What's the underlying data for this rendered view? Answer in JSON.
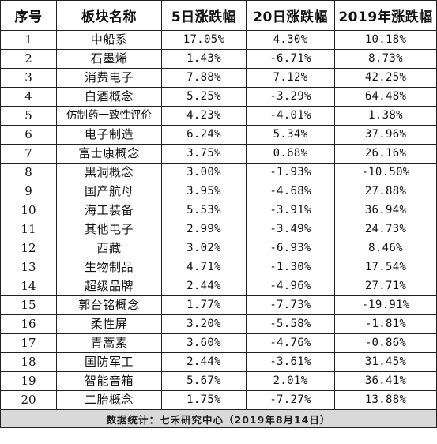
{
  "table": {
    "headers": {
      "index": "序号",
      "sector": "板块名称",
      "change_5d": "5日涨跌幅",
      "change_20d": "20日涨跌幅",
      "change_2019": "2019年涨跌幅"
    },
    "rows": [
      {
        "index": "1",
        "sector": "中船系",
        "change_5d": "17.05%",
        "change_20d": "4.30%",
        "change_2019": "10.18%"
      },
      {
        "index": "2",
        "sector": "石墨烯",
        "change_5d": "1.43%",
        "change_20d": "-6.71%",
        "change_2019": "8.73%"
      },
      {
        "index": "3",
        "sector": "消费电子",
        "change_5d": "7.88%",
        "change_20d": "7.12%",
        "change_2019": "42.25%"
      },
      {
        "index": "4",
        "sector": "白酒概念",
        "change_5d": "5.25%",
        "change_20d": "-3.29%",
        "change_2019": "64.48%"
      },
      {
        "index": "5",
        "sector": "仿制药一致性评价",
        "change_5d": "4.23%",
        "change_20d": "-4.01%",
        "change_2019": "1.38%"
      },
      {
        "index": "6",
        "sector": "电子制造",
        "change_5d": "6.24%",
        "change_20d": "5.34%",
        "change_2019": "37.96%"
      },
      {
        "index": "7",
        "sector": "富士康概念",
        "change_5d": "3.75%",
        "change_20d": "0.68%",
        "change_2019": "26.16%"
      },
      {
        "index": "8",
        "sector": "黑洞概念",
        "change_5d": "3.00%",
        "change_20d": "-1.93%",
        "change_2019": "-10.50%"
      },
      {
        "index": "9",
        "sector": "国产航母",
        "change_5d": "3.95%",
        "change_20d": "-4.68%",
        "change_2019": "27.88%"
      },
      {
        "index": "10",
        "sector": "海工装备",
        "change_5d": "5.53%",
        "change_20d": "-3.91%",
        "change_2019": "36.94%"
      },
      {
        "index": "11",
        "sector": "其他电子",
        "change_5d": "2.99%",
        "change_20d": "-3.49%",
        "change_2019": "24.73%"
      },
      {
        "index": "12",
        "sector": "西藏",
        "change_5d": "3.02%",
        "change_20d": "-6.93%",
        "change_2019": "8.46%"
      },
      {
        "index": "13",
        "sector": "生物制品",
        "change_5d": "4.71%",
        "change_20d": "-1.30%",
        "change_2019": "17.54%"
      },
      {
        "index": "14",
        "sector": "超级品牌",
        "change_5d": "2.44%",
        "change_20d": "-4.96%",
        "change_2019": "27.71%"
      },
      {
        "index": "15",
        "sector": "郭台铭概念",
        "change_5d": "1.77%",
        "change_20d": "-7.73%",
        "change_2019": "-19.91%"
      },
      {
        "index": "16",
        "sector": "柔性屏",
        "change_5d": "3.20%",
        "change_20d": "-5.58%",
        "change_2019": "-1.81%"
      },
      {
        "index": "17",
        "sector": "青蒿素",
        "change_5d": "3.60%",
        "change_20d": "-4.76%",
        "change_2019": "-0.86%"
      },
      {
        "index": "18",
        "sector": "国防军工",
        "change_5d": "2.44%",
        "change_20d": "-3.61%",
        "change_2019": "31.45%"
      },
      {
        "index": "19",
        "sector": "智能音箱",
        "change_5d": "5.67%",
        "change_20d": "2.01%",
        "change_2019": "36.41%"
      },
      {
        "index": "20",
        "sector": "二胎概念",
        "change_5d": "1.75%",
        "change_20d": "-7.27%",
        "change_2019": "13.88%"
      }
    ],
    "footer": "数据统计：七禾研究中心（2019年8月14日）"
  },
  "colors": {
    "grid_line": "#222222",
    "footer_background": "#d9d9d9",
    "text": "#111111"
  }
}
